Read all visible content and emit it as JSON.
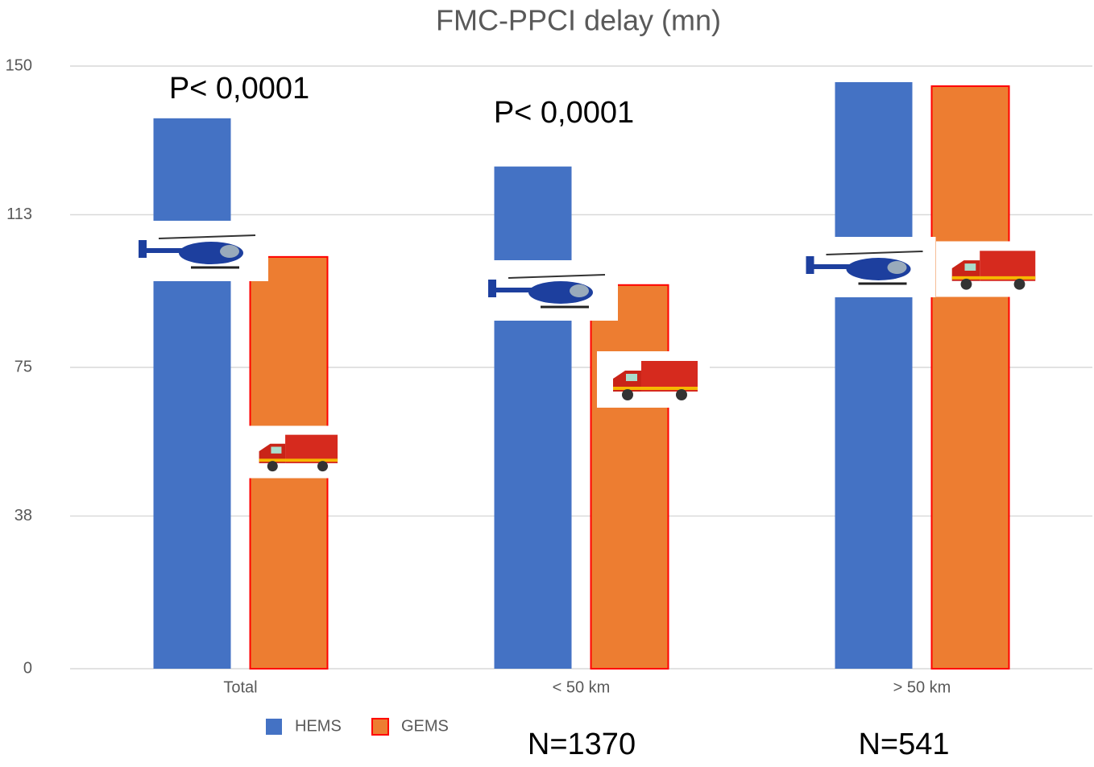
{
  "chart_data": {
    "type": "bar",
    "title": "FMC-PPCI delay (mn)",
    "categories": [
      "Total",
      "< 50 km",
      "> 50 km"
    ],
    "series": [
      {
        "name": "HEMS",
        "color": "#4472c4",
        "values": [
          137,
          125,
          146
        ]
      },
      {
        "name": "GEMS",
        "color": "#ed7d31",
        "stroke": "#ff0000",
        "values": [
          102.5,
          95.5,
          145
        ]
      }
    ],
    "ylim": [
      0,
      150
    ],
    "yticks": [
      0,
      38,
      75,
      113,
      150
    ],
    "grid": true,
    "legend": "bottom",
    "annotations": [
      "P< 0,0001",
      "P< 0,0001",
      "N=1370",
      "N=541"
    ]
  }
}
